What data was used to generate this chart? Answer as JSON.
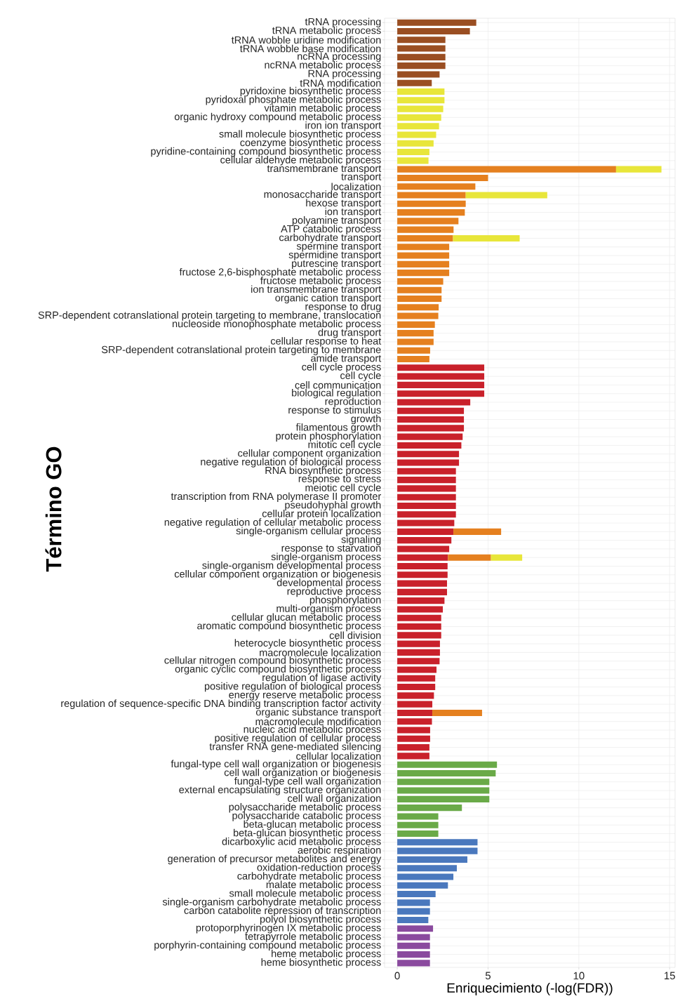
{
  "chart_data": {
    "type": "bar",
    "orientation": "horizontal",
    "stacked": true,
    "grid": true,
    "xlabel": "Enriquecimiento (-log(FDR))",
    "ylabel": "Término GO",
    "xlim": [
      -0.7,
      15.3
    ],
    "xticks": [
      0,
      5,
      10,
      15
    ],
    "categories": [
      "tRNA processing",
      "tRNA metabolic process",
      "tRNA wobble uridine modification",
      "tRNA wobble base modification",
      "ncRNA processing",
      "ncRNA metabolic process",
      "RNA processing",
      "tRNA modification",
      "pyridoxine biosynthetic process",
      "pyridoxal phosphate metabolic process",
      "vitamin metabolic process",
      "organic hydroxy compound metabolic process",
      "iron ion transport",
      "small molecule biosynthetic process",
      "coenzyme biosynthetic process",
      "pyridine-containing compound biosynthetic process",
      "cellular aldehyde metabolic process",
      "transmembrane transport",
      "transport",
      "localization",
      "monosaccharide transport",
      "hexose transport",
      "ion transport",
      "polyamine transport",
      "ATP catabolic process",
      "carbohydrate transport",
      "spermine transport",
      "spermidine transport",
      "putrescine transport",
      "fructose 2,6-bisphosphate metabolic process",
      "fructose metabolic process",
      "ion transmembrane transport",
      "organic cation transport",
      "response to drug",
      "SRP-dependent cotranslational protein targeting to membrane, translocation",
      "nucleoside monophosphate metabolic process",
      "drug transport",
      "cellular response to heat",
      "SRP-dependent cotranslational protein targeting to membrane",
      "amide transport",
      "cell cycle process",
      "cell cycle",
      "cell communication",
      "biological regulation",
      "reproduction",
      "response to stimulus",
      "growth",
      "filamentous growth",
      "protein phosphorylation",
      "mitotic cell cycle",
      "cellular component organization",
      "negative regulation of biological process",
      "RNA biosynthetic process",
      "response to stress",
      "meiotic cell cycle",
      "transcription from RNA polymerase II promoter",
      "pseudohyphal growth",
      "cellular protein localization",
      "negative regulation of cellular metabolic process",
      "single-organism cellular process",
      "signaling",
      "response to starvation",
      "single-organism process",
      "single-organism developmental process",
      "cellular component organization or biogenesis",
      "developmental process",
      "reproductive process",
      "phosphorylation",
      "multi-organism process",
      "cellular glucan metabolic process",
      "aromatic compound biosynthetic process",
      "cell division",
      "heterocycle biosynthetic process",
      "macromolecule localization",
      "cellular nitrogen compound biosynthetic process",
      "organic cyclic compound biosynthetic process",
      "regulation of ligase activity",
      "positive regulation of biological process",
      "energy reserve metabolic process",
      "regulation of sequence-specific DNA binding transcription factor activity",
      "organic substance transport",
      "macromolecule modification",
      "nucleic acid metabolic process",
      "positive regulation of cellular process",
      "transfer RNA gene-mediated silencing",
      "cellular localization",
      "fungal-type cell wall organization or biogenesis",
      "cell wall organization or biogenesis",
      "fungal-type cell wall organization",
      "external encapsulating structure organization",
      "cell wall organization",
      "polysaccharide metabolic process",
      "polysaccharide catabolic process",
      "beta-glucan metabolic process",
      "beta-glucan biosynthetic process",
      "dicarboxylic acid metabolic process",
      "aerobic respiration",
      "generation of precursor metabolites and energy",
      "oxidation-reduction process",
      "carbohydrate metabolic process",
      "malate metabolic process",
      "small molecule metabolic process",
      "single-organism carbohydrate metabolic process",
      "carbon catabolite repression of transcription",
      "polyol biosynthetic process",
      "protoporphyrinogen IX metabolic process",
      "tetrapyrrole metabolic process",
      "porphyrin-containing compound metabolic process",
      "heme metabolic process",
      "heme biosynthetic process"
    ],
    "series": [
      {
        "color": "#9a4e22",
        "values": [
          4.35,
          4.0,
          2.65,
          2.65,
          2.65,
          2.65,
          2.33,
          1.9,
          null,
          null,
          null,
          null,
          null,
          null,
          null,
          null,
          null,
          null,
          null,
          null,
          null,
          null,
          null,
          null,
          null,
          null,
          null,
          null,
          null,
          null,
          null,
          null,
          null,
          null,
          null,
          null,
          null,
          null,
          null,
          null,
          null,
          null,
          null,
          null,
          null,
          null,
          null,
          null,
          null,
          null,
          null,
          null,
          null,
          null,
          null,
          null,
          null,
          null,
          null,
          null,
          null,
          null,
          null,
          null,
          null,
          null,
          null,
          null,
          null,
          null,
          null,
          null,
          null,
          null,
          null,
          null,
          null,
          null,
          null,
          null,
          null,
          null,
          null,
          null,
          null,
          null,
          null,
          null,
          null,
          null,
          null,
          null,
          null,
          null,
          null,
          null,
          null,
          null,
          null,
          null,
          null,
          null,
          null,
          null,
          null,
          null,
          null,
          null,
          null,
          null
        ]
      },
      {
        "color": "#c9212b",
        "values": [
          null,
          null,
          null,
          null,
          null,
          null,
          null,
          null,
          null,
          null,
          null,
          null,
          null,
          null,
          null,
          null,
          null,
          null,
          null,
          null,
          null,
          null,
          null,
          null,
          null,
          null,
          null,
          null,
          null,
          null,
          null,
          null,
          null,
          null,
          null,
          null,
          null,
          null,
          null,
          null,
          4.79,
          4.79,
          4.79,
          4.79,
          4.02,
          3.67,
          3.67,
          3.67,
          3.6,
          3.53,
          3.4,
          3.4,
          3.23,
          3.23,
          3.23,
          3.23,
          3.23,
          3.23,
          3.14,
          3.09,
          2.98,
          2.86,
          2.79,
          2.77,
          2.77,
          2.74,
          2.74,
          2.6,
          2.51,
          2.42,
          2.42,
          2.42,
          2.35,
          2.35,
          2.33,
          2.16,
          2.09,
          2.09,
          2.02,
          1.93,
          1.93,
          1.91,
          1.81,
          1.81,
          1.77,
          1.77,
          null,
          null,
          null,
          null,
          null,
          null,
          null,
          null,
          null,
          null,
          null,
          null,
          null,
          null,
          null,
          null,
          null,
          null,
          null,
          null,
          null,
          null,
          null,
          null
        ]
      },
      {
        "color": "#e5801f",
        "values": [
          null,
          null,
          null,
          null,
          null,
          null,
          null,
          null,
          null,
          null,
          null,
          null,
          null,
          null,
          null,
          null,
          null,
          12.05,
          5.0,
          4.3,
          3.77,
          3.77,
          3.72,
          3.37,
          3.1,
          3.07,
          2.86,
          2.86,
          2.86,
          2.86,
          2.53,
          2.44,
          2.44,
          2.28,
          2.26,
          2.07,
          2.0,
          2.0,
          1.81,
          1.77,
          null,
          null,
          null,
          null,
          null,
          null,
          null,
          null,
          null,
          null,
          null,
          null,
          null,
          null,
          null,
          null,
          null,
          null,
          null,
          2.63,
          null,
          null,
          2.37,
          null,
          null,
          null,
          null,
          null,
          null,
          null,
          null,
          null,
          null,
          null,
          null,
          null,
          null,
          null,
          null,
          null,
          2.74,
          null,
          null,
          null,
          null,
          null,
          null,
          null,
          null,
          null,
          null,
          null,
          null,
          null,
          null,
          null,
          null,
          null,
          null,
          null,
          null,
          null,
          null,
          null,
          null,
          null,
          null,
          null,
          null,
          null
        ]
      },
      {
        "color": "#e8e63a",
        "values": [
          null,
          null,
          null,
          null,
          null,
          null,
          null,
          null,
          2.6,
          2.6,
          2.53,
          2.42,
          2.3,
          2.14,
          2.0,
          1.77,
          1.72,
          2.5,
          null,
          null,
          4.49,
          null,
          null,
          null,
          null,
          3.67,
          null,
          null,
          null,
          null,
          null,
          null,
          null,
          null,
          null,
          null,
          null,
          null,
          null,
          null,
          null,
          null,
          null,
          null,
          null,
          null,
          null,
          null,
          null,
          null,
          null,
          null,
          null,
          null,
          null,
          null,
          null,
          null,
          null,
          null,
          null,
          null,
          1.72,
          null,
          null,
          null,
          null,
          null,
          null,
          null,
          null,
          null,
          null,
          null,
          null,
          null,
          null,
          null,
          null,
          null,
          null,
          null,
          null,
          null,
          null,
          null,
          null,
          null,
          null,
          null,
          null,
          null,
          null,
          null,
          null,
          null,
          null,
          null,
          null,
          null,
          null,
          null,
          null,
          null,
          null,
          null,
          null,
          null,
          null,
          null
        ]
      },
      {
        "color": "#6aaa48",
        "values": [
          null,
          null,
          null,
          null,
          null,
          null,
          null,
          null,
          null,
          null,
          null,
          null,
          null,
          null,
          null,
          null,
          null,
          null,
          null,
          null,
          null,
          null,
          null,
          null,
          null,
          null,
          null,
          null,
          null,
          null,
          null,
          null,
          null,
          null,
          null,
          null,
          null,
          null,
          null,
          null,
          null,
          null,
          null,
          null,
          null,
          null,
          null,
          null,
          null,
          null,
          null,
          null,
          null,
          null,
          null,
          null,
          null,
          null,
          null,
          null,
          null,
          null,
          null,
          null,
          null,
          null,
          null,
          null,
          null,
          null,
          null,
          null,
          null,
          null,
          null,
          null,
          null,
          null,
          null,
          null,
          null,
          null,
          null,
          null,
          null,
          null,
          5.49,
          5.42,
          5.07,
          5.07,
          5.07,
          3.56,
          2.26,
          2.26,
          2.26,
          null,
          null,
          null,
          null,
          null,
          null,
          null,
          null,
          null,
          null,
          null,
          null,
          null,
          null,
          null
        ]
      },
      {
        "color": "#4a78bd",
        "values": [
          null,
          null,
          null,
          null,
          null,
          null,
          null,
          null,
          null,
          null,
          null,
          null,
          null,
          null,
          null,
          null,
          null,
          null,
          null,
          null,
          null,
          null,
          null,
          null,
          null,
          null,
          null,
          null,
          null,
          null,
          null,
          null,
          null,
          null,
          null,
          null,
          null,
          null,
          null,
          null,
          null,
          null,
          null,
          null,
          null,
          null,
          null,
          null,
          null,
          null,
          null,
          null,
          null,
          null,
          null,
          null,
          null,
          null,
          null,
          null,
          null,
          null,
          null,
          null,
          null,
          null,
          null,
          null,
          null,
          null,
          null,
          null,
          null,
          null,
          null,
          null,
          null,
          null,
          null,
          null,
          null,
          null,
          null,
          null,
          null,
          null,
          null,
          null,
          null,
          null,
          null,
          null,
          null,
          null,
          null,
          4.42,
          4.42,
          3.86,
          3.28,
          3.09,
          2.79,
          2.11,
          1.8,
          1.8,
          1.71,
          null,
          null,
          null,
          null,
          null
        ]
      },
      {
        "color": "#8a4a9e",
        "values": [
          null,
          null,
          null,
          null,
          null,
          null,
          null,
          null,
          null,
          null,
          null,
          null,
          null,
          null,
          null,
          null,
          null,
          null,
          null,
          null,
          null,
          null,
          null,
          null,
          null,
          null,
          null,
          null,
          null,
          null,
          null,
          null,
          null,
          null,
          null,
          null,
          null,
          null,
          null,
          null,
          null,
          null,
          null,
          null,
          null,
          null,
          null,
          null,
          null,
          null,
          null,
          null,
          null,
          null,
          null,
          null,
          null,
          null,
          null,
          null,
          null,
          null,
          null,
          null,
          null,
          null,
          null,
          null,
          null,
          null,
          null,
          null,
          null,
          null,
          null,
          null,
          null,
          null,
          null,
          null,
          null,
          null,
          null,
          null,
          null,
          null,
          null,
          null,
          null,
          null,
          null,
          null,
          null,
          null,
          null,
          null,
          null,
          null,
          null,
          null,
          null,
          null,
          null,
          null,
          null,
          1.97,
          1.8,
          1.8,
          1.8,
          1.8
        ]
      }
    ]
  }
}
